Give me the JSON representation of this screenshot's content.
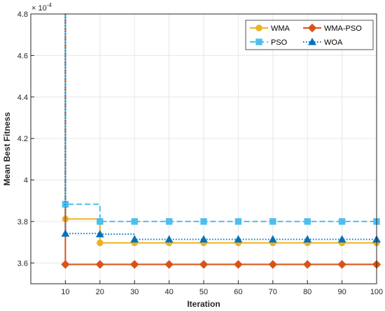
{
  "chart_data": {
    "type": "line",
    "title": "",
    "xlabel": "Iteration",
    "ylabel": "Mean Best Fitness",
    "y_exponent_label": "× 10",
    "y_exponent_power": "-4",
    "xlim": [
      0,
      100
    ],
    "ylim": [
      3.5,
      4.8
    ],
    "x_ticks": [
      10,
      20,
      30,
      40,
      50,
      60,
      70,
      80,
      90,
      100
    ],
    "x_tick_labels": [
      "10",
      "20",
      "30",
      "40",
      "50",
      "60",
      "70",
      "80",
      "90",
      "100"
    ],
    "y_ticks": [
      3.6,
      3.8,
      4.0,
      4.2,
      4.4,
      4.6,
      4.8
    ],
    "y_tick_labels": [
      "3.6",
      "3.8",
      "4",
      "4.2",
      "4.4",
      "4.6",
      "4.8"
    ],
    "grid": true,
    "legend_position": "top-right",
    "series": [
      {
        "name": "WMA",
        "color": "#EDB120",
        "line_style": "solid",
        "marker": "circle",
        "drop_from_top": true,
        "x": [
          10,
          20,
          30,
          40,
          50,
          60,
          70,
          80,
          90,
          100
        ],
        "y": [
          3.812,
          3.697,
          3.697,
          3.697,
          3.697,
          3.697,
          3.697,
          3.697,
          3.697,
          3.697
        ]
      },
      {
        "name": "WMA-PSO",
        "color": "#D95319",
        "line_style": "solid",
        "marker": "diamond",
        "drop_from_top": true,
        "x": [
          10,
          20,
          30,
          40,
          50,
          60,
          70,
          80,
          90,
          100
        ],
        "y": [
          3.593,
          3.593,
          3.593,
          3.593,
          3.593,
          3.593,
          3.593,
          3.593,
          3.593,
          3.593
        ]
      },
      {
        "name": "PSO",
        "color": "#4DBEEE",
        "line_style": "dashed",
        "marker": "square",
        "drop_from_top": true,
        "x": [
          10,
          20,
          30,
          40,
          50,
          60,
          70,
          80,
          90,
          100
        ],
        "y": [
          3.883,
          3.8,
          3.8,
          3.8,
          3.8,
          3.8,
          3.8,
          3.8,
          3.8,
          3.8
        ]
      },
      {
        "name": "WOA",
        "color": "#0072BD",
        "line_style": "dotted",
        "marker": "triangle",
        "drop_from_top": true,
        "x": [
          10,
          20,
          30,
          40,
          50,
          60,
          70,
          80,
          90,
          100
        ],
        "y": [
          3.742,
          3.739,
          3.714,
          3.714,
          3.714,
          3.714,
          3.714,
          3.714,
          3.714,
          3.714
        ]
      }
    ]
  }
}
